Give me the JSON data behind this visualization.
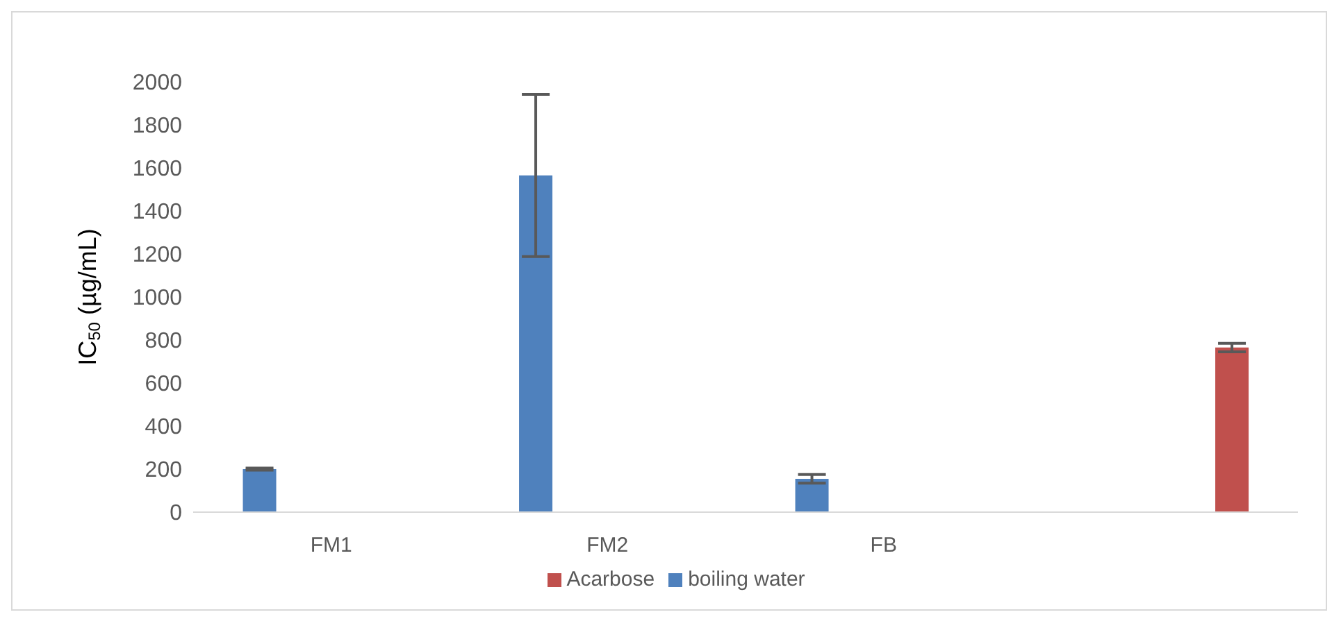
{
  "chart_data": {
    "type": "bar",
    "ylabel": "IC$_{50}$ (µg/mL)",
    "categories": [
      "FM1",
      "FM2",
      "FB",
      null
    ],
    "series": [
      {
        "name": "boiling water",
        "color": "#4f81bd",
        "values": [
          200,
          1565,
          155,
          null
        ],
        "errors": [
          5,
          377,
          20,
          null
        ]
      },
      {
        "name": "Acarbose",
        "color": "#c0504d",
        "values": [
          null,
          null,
          null,
          765
        ],
        "errors": [
          null,
          null,
          null,
          20
        ]
      }
    ],
    "ylim": [
      0,
      2000
    ],
    "yticks": [
      0,
      200,
      400,
      600,
      800,
      1000,
      1200,
      1400,
      1600,
      1800,
      2000
    ],
    "grid": false,
    "legend": "bottom"
  }
}
